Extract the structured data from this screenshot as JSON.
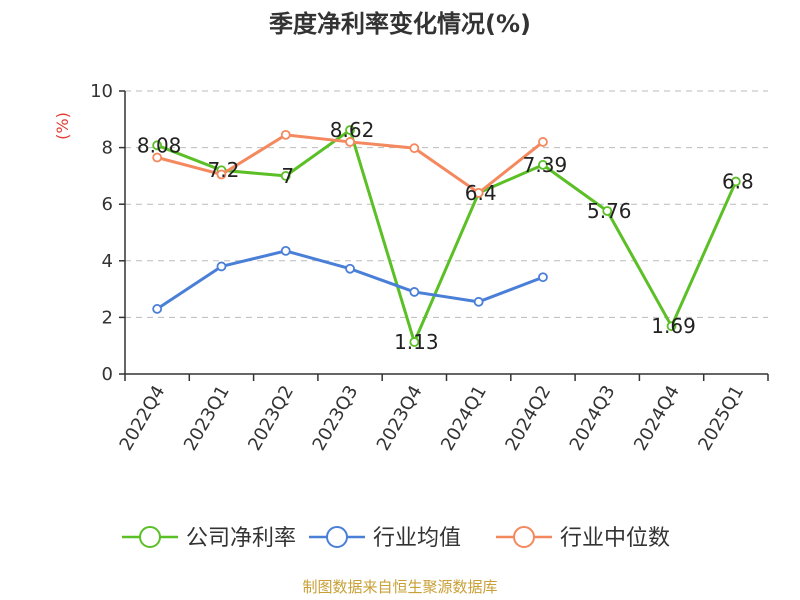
{
  "title": "季度净利率变化情况(%)",
  "source": "制图数据来自恒生聚源数据库",
  "colors": {
    "source_text": "#c9a037",
    "ylabel_text": "#e03c32",
    "axis": "#333333",
    "grid": "#bbbbbb"
  },
  "chart_data": {
    "type": "line",
    "title": "季度净利率变化情况(%)",
    "ylabel": "(%)",
    "xlabel": "",
    "ylim": [
      0,
      10
    ],
    "yticks": [
      0,
      2,
      4,
      6,
      8,
      10
    ],
    "grid": true,
    "legend_position": "bottom",
    "categories": [
      "2022Q4",
      "2023Q1",
      "2023Q2",
      "2023Q3",
      "2023Q4",
      "2024Q1",
      "2024Q2",
      "2024Q3",
      "2024Q4",
      "2025Q1"
    ],
    "series": [
      {
        "name": "公司净利率",
        "color": "#5bbf26",
        "values": [
          8.08,
          7.2,
          7,
          8.62,
          1.13,
          6.4,
          7.39,
          5.76,
          1.69,
          6.8
        ],
        "labels": [
          "8.08",
          "7.2",
          "7",
          "8.62",
          "1.13",
          "6.4",
          "7.39",
          "5.76",
          "1.69",
          "6.8"
        ]
      },
      {
        "name": "行业均值",
        "color": "#4a7fd8",
        "values": [
          2.3,
          3.8,
          4.35,
          3.72,
          2.9,
          2.55,
          3.42,
          null,
          null,
          null
        ]
      },
      {
        "name": "行业中位数",
        "color": "#f4895f",
        "values": [
          7.65,
          7.05,
          8.45,
          8.2,
          7.98,
          6.4,
          8.2,
          null,
          null,
          null
        ]
      }
    ]
  }
}
